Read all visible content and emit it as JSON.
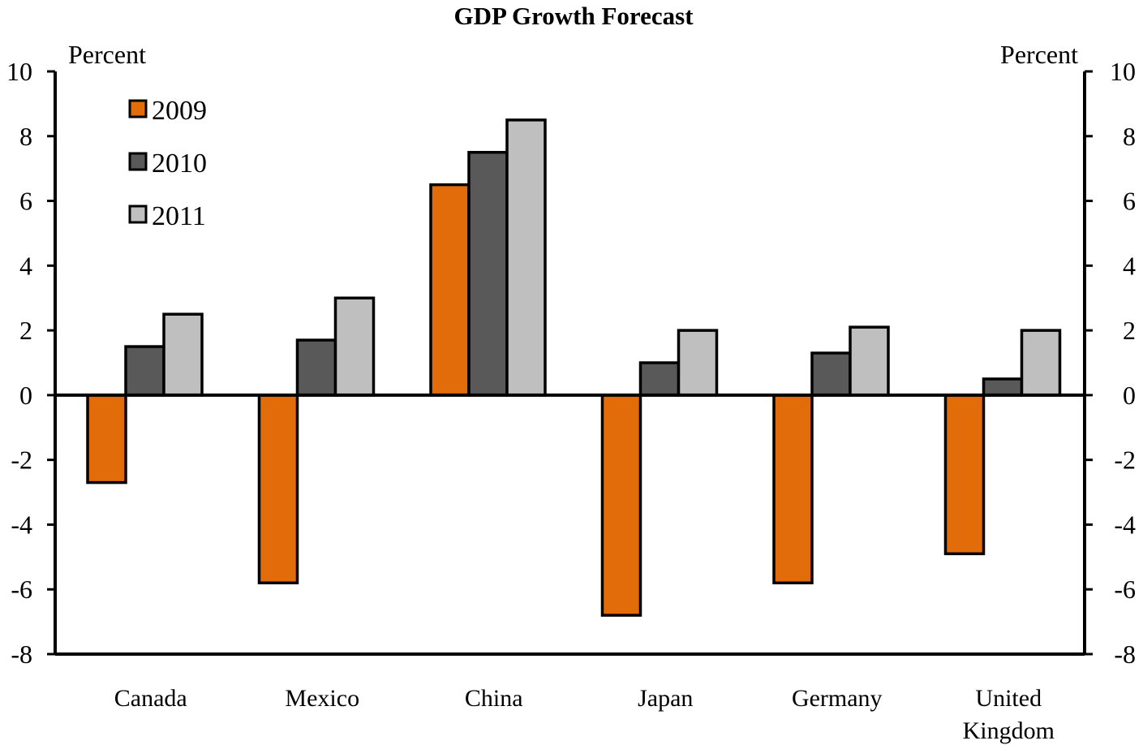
{
  "chart_data": {
    "type": "bar",
    "title": "GDP Growth Forecast",
    "left_unit_label": "Percent",
    "right_unit_label": "Percent",
    "categories": [
      "Canada",
      "Mexico",
      "China",
      "Japan",
      "Germany",
      "United Kingdom"
    ],
    "category_label_lines": [
      [
        "Canada"
      ],
      [
        "Mexico"
      ],
      [
        "China"
      ],
      [
        "Japan"
      ],
      [
        "Germany"
      ],
      [
        "United",
        "Kingdom"
      ]
    ],
    "series": [
      {
        "name": "2009",
        "color": "#E36C0A",
        "values": [
          -2.7,
          -5.8,
          6.5,
          -6.8,
          -5.8,
          -4.9
        ]
      },
      {
        "name": "2010",
        "color": "#595959",
        "values": [
          1.5,
          1.7,
          7.5,
          1.0,
          1.3,
          0.5
        ]
      },
      {
        "name": "2011",
        "color": "#BFBFBF",
        "values": [
          2.5,
          3.0,
          8.5,
          2.0,
          2.1,
          2.0
        ]
      }
    ],
    "ylim": [
      -8,
      10
    ],
    "yticks": [
      -8,
      -6,
      -4,
      -2,
      0,
      2,
      4,
      6,
      8,
      10
    ],
    "ytick_labels": [
      "-8",
      "-6",
      "-4",
      "-2",
      "0",
      "2",
      "4",
      "6",
      "8",
      "10"
    ],
    "grid": false,
    "legend_position": "top-left",
    "bar_outline_color": "#000000"
  }
}
